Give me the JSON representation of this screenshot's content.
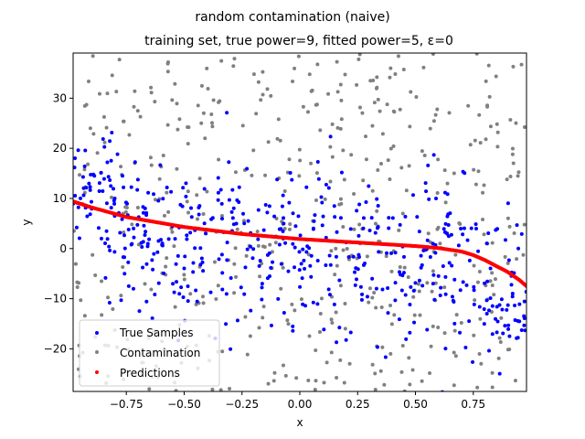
{
  "chart_data": {
    "type": "scatter",
    "suptitle": "random contamination (naive)",
    "title": "training set, true power=9, fitted power=5, ε=0",
    "xlabel": "x",
    "ylabel": "y",
    "xlim": [
      -0.98,
      0.98
    ],
    "ylim": [
      -28.5,
      39
    ],
    "xticks": [
      -0.75,
      -0.5,
      -0.25,
      0.0,
      0.25,
      0.5,
      0.75
    ],
    "xtick_labels": [
      "−0.75",
      "−0.50",
      "−0.25",
      "0.00",
      "0.25",
      "0.50",
      "0.75"
    ],
    "yticks": [
      -20,
      -10,
      0,
      10,
      20,
      30
    ],
    "ytick_labels": [
      "−20",
      "−10",
      "0",
      "10",
      "20",
      "30"
    ],
    "legend_position": "lower-left",
    "series": [
      {
        "name": "True Samples",
        "color": "#0000ff",
        "count": 520,
        "y_mean_anchors": [
          [
            -0.98,
            18
          ],
          [
            -0.9,
            10
          ],
          [
            -0.75,
            4
          ],
          [
            -0.5,
            0
          ],
          [
            -0.25,
            -1
          ],
          [
            0.0,
            0
          ],
          [
            0.25,
            -1
          ],
          [
            0.5,
            -3
          ],
          [
            0.75,
            -6
          ],
          [
            0.98,
            -14
          ]
        ],
        "y_spread": 8.5
      },
      {
        "name": "Contamination",
        "color": "#808080",
        "count": 520,
        "y_range": [
          -28.5,
          39
        ]
      },
      {
        "name": "Predictions",
        "color": "#ff0000",
        "fit_points": [
          [
            -0.98,
            9.4
          ],
          [
            -0.9,
            8.2
          ],
          [
            -0.75,
            6.3
          ],
          [
            -0.5,
            4.3
          ],
          [
            -0.25,
            2.9
          ],
          [
            0.0,
            1.9
          ],
          [
            0.25,
            1.2
          ],
          [
            0.5,
            0.5
          ],
          [
            0.6,
            0.1
          ],
          [
            0.7,
            -0.6
          ],
          [
            0.75,
            -1.3
          ],
          [
            0.8,
            -2.3
          ],
          [
            0.85,
            -3.5
          ],
          [
            0.9,
            -4.7
          ],
          [
            0.95,
            -6.3
          ],
          [
            0.98,
            -7.5
          ]
        ]
      }
    ]
  }
}
